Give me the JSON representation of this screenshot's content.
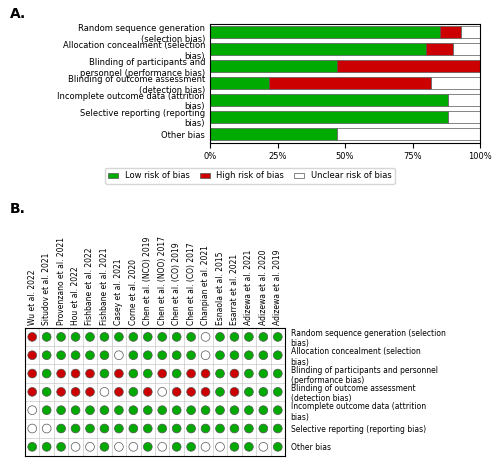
{
  "chart_data": [
    {
      "type": "bar",
      "title": "A.",
      "orientation": "horizontal",
      "stacked": true,
      "categories": [
        "Random sequence generation (selection bias)",
        "Allocation concealment (selection bias)",
        "Blinding of participants and personnel (performance bias)",
        "Blinding of outcome assessment (detection bias)",
        "Incomplete outcome data (attrition bias)",
        "Selective reporting (reporting bias)",
        "Other bias"
      ],
      "series": [
        {
          "name": "Low risk of bias",
          "color": "#00AA00",
          "values": [
            85,
            80,
            47,
            22,
            88,
            88,
            47
          ]
        },
        {
          "name": "High risk of bias",
          "color": "#CC0000",
          "values": [
            8,
            10,
            53,
            60,
            0,
            0,
            0
          ]
        },
        {
          "name": "Unclear risk of bias",
          "color": "#FFFFFF",
          "values": [
            7,
            10,
            0,
            18,
            12,
            12,
            53
          ]
        }
      ],
      "xlim": [
        0,
        100
      ],
      "xticks": [
        {
          "value": 0,
          "label": "0%"
        },
        {
          "value": 25,
          "label": "25%"
        },
        {
          "value": 50,
          "label": "50%"
        },
        {
          "value": 75,
          "label": "75%"
        },
        {
          "value": 100,
          "label": "100%"
        }
      ],
      "legend": "upper center"
    },
    {
      "type": "matrix",
      "title": "B.",
      "x": [
        "Wu et al. 2022",
        "Situdov et al. 2021",
        "Provenzano et al. 2021",
        "Hou et al. 2022",
        "Fishbane et al. 2022",
        "Fishbane et al. 2021",
        "Casey et al. 2021",
        "Corne et al. 2020",
        "Chen et al. (NCO) 2019",
        "Chen et al. (NOO) 2017",
        "Chen et al. (CO) 2019",
        "Chen et al. (CO) 2017",
        "Chanpian et al. 2021",
        "Esnaola et al. 2015",
        "Esarrat et al. 2021",
        "Adizewa et al. 2021",
        "Adizewa et al. 2020",
        "Adizewa et al. 2019"
      ],
      "y": [
        "Random sequence generation (selection bias)",
        "Allocation concealment (selection bias)",
        "Blinding of participants and personnel (performance bias)",
        "Blinding of outcome assessment (detection bias)",
        "Incomplete outcome data (attrition bias)",
        "Selective reporting (reporting bias)",
        "Other bias"
      ],
      "cells": [
        [
          "#CC0000",
          "#00AA00",
          "#00AA00",
          "#00AA00",
          "#00AA00",
          "#00AA00",
          "#00AA00",
          "#00AA00",
          "#00AA00",
          "#00AA00",
          "#00AA00",
          "#00AA00",
          "#FFFFFF",
          "#00AA00",
          "#00AA00",
          "#00AA00",
          "#00AA00",
          "#00AA00"
        ],
        [
          "#CC0000",
          "#00AA00",
          "#00AA00",
          "#00AA00",
          "#00AA00",
          "#00AA00",
          "#FFFFFF",
          "#00AA00",
          "#00AA00",
          "#00AA00",
          "#00AA00",
          "#00AA00",
          "#FFFFFF",
          "#00AA00",
          "#00AA00",
          "#00AA00",
          "#00AA00",
          "#00AA00"
        ],
        [
          "#CC0000",
          "#00AA00",
          "#CC0000",
          "#CC0000",
          "#CC0000",
          "#00AA00",
          "#CC0000",
          "#00AA00",
          "#00AA00",
          "#CC0000",
          "#00AA00",
          "#CC0000",
          "#CC0000",
          "#00AA00",
          "#CC0000",
          "#00AA00",
          "#00AA00",
          "#00AA00"
        ],
        [
          "#CC0000",
          "#00AA00",
          "#CC0000",
          "#CC0000",
          "#CC0000",
          "#FFFFFF",
          "#CC0000",
          "#00AA00",
          "#CC0000",
          "#FFFFFF",
          "#CC0000",
          "#CC0000",
          "#CC0000",
          "#00AA00",
          "#CC0000",
          "#00AA00",
          "#00AA00",
          "#00AA00"
        ],
        [
          "#FFFFFF",
          "#00AA00",
          "#00AA00",
          "#00AA00",
          "#00AA00",
          "#00AA00",
          "#00AA00",
          "#00AA00",
          "#00AA00",
          "#00AA00",
          "#00AA00",
          "#00AA00",
          "#00AA00",
          "#00AA00",
          "#00AA00",
          "#00AA00",
          "#00AA00",
          "#00AA00"
        ],
        [
          "#FFFFFF",
          "#FFFFFF",
          "#00AA00",
          "#00AA00",
          "#00AA00",
          "#00AA00",
          "#00AA00",
          "#00AA00",
          "#00AA00",
          "#00AA00",
          "#00AA00",
          "#00AA00",
          "#00AA00",
          "#00AA00",
          "#00AA00",
          "#00AA00",
          "#00AA00",
          "#00AA00"
        ],
        [
          "#00AA00",
          "#00AA00",
          "#00AA00",
          "#FFFFFF",
          "#FFFFFF",
          "#00AA00",
          "#FFFFFF",
          "#FFFFFF",
          "#00AA00",
          "#FFFFFF",
          "#00AA00",
          "#00AA00",
          "#FFFFFF",
          "#FFFFFF",
          "#00AA00",
          "#00AA00",
          "#FFFFFF",
          "#00AA00"
        ]
      ]
    }
  ]
}
